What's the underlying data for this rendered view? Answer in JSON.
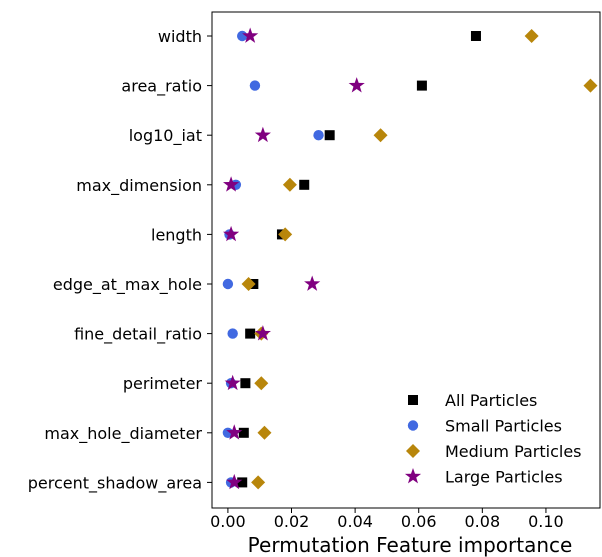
{
  "chart_data": {
    "type": "scatter",
    "orientation": "horizontal",
    "title": "",
    "xlabel": "Permutation Feature importance",
    "ylabel": "",
    "xlim": [
      -0.005,
      0.117
    ],
    "xticks": [
      0.0,
      0.02,
      0.04,
      0.06,
      0.08,
      0.1
    ],
    "xtick_labels": [
      "0.00",
      "0.02",
      "0.04",
      "0.06",
      "0.08",
      "0.10"
    ],
    "grid": false,
    "legend_position": "lower-right",
    "categories": [
      "width",
      "area_ratio",
      "log10_iat",
      "max_dimension",
      "length",
      "edge_at_max_hole",
      "fine_detail_ratio",
      "perimeter",
      "max_hole_diameter",
      "percent_shadow_area"
    ],
    "series": [
      {
        "name": "All Particles",
        "marker": "square",
        "color": "#000000",
        "values": [
          0.078,
          0.061,
          0.032,
          0.024,
          0.017,
          0.008,
          0.007,
          0.0055,
          0.005,
          0.0045
        ]
      },
      {
        "name": "Small Particles",
        "marker": "circle",
        "color": "#4169e1",
        "values": [
          0.0045,
          0.0085,
          0.0285,
          0.0025,
          0.0005,
          0.0,
          0.0015,
          0.001,
          0.0,
          0.001
        ]
      },
      {
        "name": "Medium Particles",
        "marker": "diamond",
        "color": "#b8860b",
        "values": [
          0.0955,
          0.114,
          0.048,
          0.0195,
          0.018,
          0.0065,
          0.0105,
          0.0105,
          0.0115,
          0.0095
        ]
      },
      {
        "name": "Large Particles",
        "marker": "star",
        "color": "#800080",
        "values": [
          0.007,
          0.0405,
          0.011,
          0.001,
          0.001,
          0.0265,
          0.011,
          0.0015,
          0.002,
          0.002
        ]
      }
    ]
  }
}
